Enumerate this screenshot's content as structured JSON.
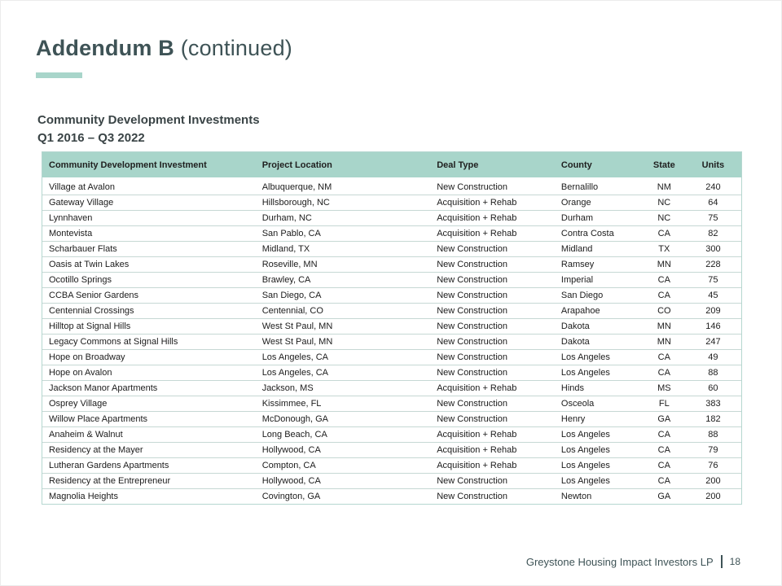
{
  "header": {
    "title_main": "Addendum B",
    "title_suffix": " (continued)"
  },
  "table": {
    "title_line1": "Community Development Investments",
    "title_line2": "Q1 2016 – Q3 2022",
    "columns": [
      "Community Development Investment",
      "Project Location",
      "Deal Type",
      "County",
      "State",
      "Units"
    ],
    "rows": [
      [
        "Village at Avalon",
        "Albuquerque, NM",
        "New Construction",
        "Bernalillo",
        "NM",
        "240"
      ],
      [
        "Gateway Village",
        "Hillsborough, NC",
        "Acquisition + Rehab",
        "Orange",
        "NC",
        "64"
      ],
      [
        "Lynnhaven",
        "Durham, NC",
        "Acquisition + Rehab",
        "Durham",
        "NC",
        "75"
      ],
      [
        "Montevista",
        "San Pablo, CA",
        "Acquisition + Rehab",
        "Contra Costa",
        "CA",
        "82"
      ],
      [
        "Scharbauer Flats",
        "Midland, TX",
        "New Construction",
        "Midland",
        "TX",
        "300"
      ],
      [
        "Oasis at Twin Lakes",
        "Roseville, MN",
        "New Construction",
        "Ramsey",
        "MN",
        "228"
      ],
      [
        "Ocotillo Springs",
        "Brawley, CA",
        "New Construction",
        "Imperial",
        "CA",
        "75"
      ],
      [
        "CCBA Senior Gardens",
        "San Diego, CA",
        "New Construction",
        "San Diego",
        "CA",
        "45"
      ],
      [
        "Centennial Crossings",
        "Centennial, CO",
        "New Construction",
        "Arapahoe",
        "CO",
        "209"
      ],
      [
        "Hilltop at Signal Hills",
        "West St Paul, MN",
        "New Construction",
        "Dakota",
        "MN",
        "146"
      ],
      [
        "Legacy Commons at Signal Hills",
        "West St Paul, MN",
        "New Construction",
        "Dakota",
        "MN",
        "247"
      ],
      [
        "Hope on Broadway",
        "Los Angeles, CA",
        "New Construction",
        "Los Angeles",
        "CA",
        "49"
      ],
      [
        "Hope on Avalon",
        "Los Angeles, CA",
        "New Construction",
        "Los Angeles",
        "CA",
        "88"
      ],
      [
        "Jackson Manor Apartments",
        "Jackson, MS",
        "Acquisition + Rehab",
        "Hinds",
        "MS",
        "60"
      ],
      [
        "Osprey Village",
        "Kissimmee, FL",
        "New Construction",
        "Osceola",
        "FL",
        "383"
      ],
      [
        "Willow Place Apartments",
        "McDonough, GA",
        "New Construction",
        "Henry",
        "GA",
        "182"
      ],
      [
        "Anaheim & Walnut",
        "Long Beach, CA",
        "Acquisition + Rehab",
        "Los Angeles",
        "CA",
        "88"
      ],
      [
        "Residency at the Mayer",
        "Hollywood, CA",
        "Acquisition + Rehab",
        "Los Angeles",
        "CA",
        "79"
      ],
      [
        "Lutheran Gardens Apartments",
        "Compton, CA",
        "Acquisition + Rehab",
        "Los Angeles",
        "CA",
        "76"
      ],
      [
        "Residency at the Entrepreneur",
        "Hollywood, CA",
        "New Construction",
        "Los Angeles",
        "CA",
        "200"
      ],
      [
        "Magnolia Heights",
        "Covington, GA",
        "New Construction",
        "Newton",
        "GA",
        "200"
      ]
    ]
  },
  "footer": {
    "company": "Greystone Housing Impact Investors LP",
    "page_number": "18"
  },
  "colors": {
    "accent_teal": "#a8d5ca",
    "table_header_bg": "#a8d5ca",
    "title_text": "#3e5356",
    "row_divider": "#c6d8d4"
  }
}
